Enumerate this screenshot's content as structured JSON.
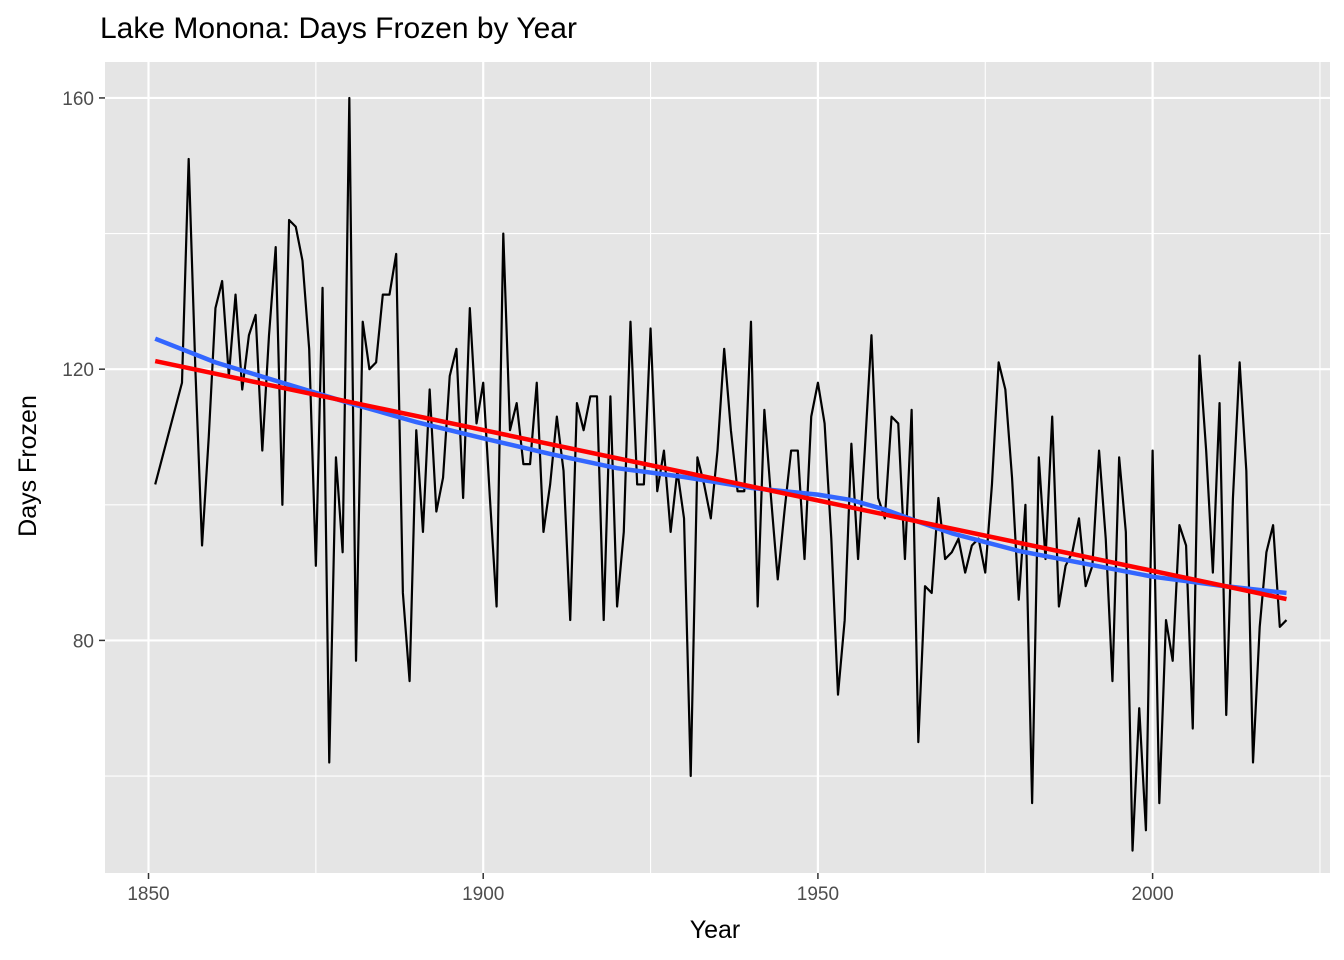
{
  "chart_data": {
    "type": "line",
    "title": "Lake Monona: Days Frozen by Year",
    "xlabel": "Year",
    "ylabel": "Days Frozen",
    "xlim": [
      1843.5,
      2026.5
    ],
    "ylim": [
      45.7,
      165.3
    ],
    "x_ticks": [
      1850,
      1900,
      1950,
      2000
    ],
    "x_tick_labels": [
      "1850",
      "1900",
      "1950",
      "2000"
    ],
    "x_minor_ticks": [
      1875,
      1925,
      1975,
      2025
    ],
    "y_ticks": [
      80,
      120,
      160
    ],
    "y_tick_labels": [
      "80",
      "120",
      "160"
    ],
    "y_minor_ticks": [
      60,
      100,
      140
    ],
    "grid": true,
    "legend": "none",
    "colors": {
      "panel": "#e5e5e5",
      "grid": "#ffffff",
      "observed": "#000000",
      "smooth": "#3366ff",
      "linear": "#ff0000"
    },
    "series": [
      {
        "role": "observed",
        "x": [
          1851,
          1855,
          1856,
          1857,
          1858,
          1859,
          1860,
          1861,
          1862,
          1863,
          1864,
          1865,
          1866,
          1867,
          1868,
          1869,
          1870,
          1871,
          1872,
          1873,
          1874,
          1875,
          1876,
          1877,
          1878,
          1879,
          1880,
          1881,
          1882,
          1883,
          1884,
          1885,
          1886,
          1887,
          1888,
          1889,
          1890,
          1891,
          1892,
          1893,
          1894,
          1895,
          1896,
          1897,
          1898,
          1899,
          1900,
          1901,
          1902,
          1903,
          1904,
          1905,
          1906,
          1907,
          1908,
          1909,
          1910,
          1911,
          1912,
          1913,
          1914,
          1915,
          1916,
          1917,
          1918,
          1919,
          1920,
          1921,
          1922,
          1923,
          1924,
          1925,
          1926,
          1927,
          1928,
          1929,
          1930,
          1931,
          1932,
          1933,
          1934,
          1935,
          1936,
          1937,
          1938,
          1939,
          1940,
          1941,
          1942,
          1943,
          1944,
          1945,
          1946,
          1947,
          1948,
          1949,
          1950,
          1951,
          1952,
          1953,
          1954,
          1955,
          1956,
          1957,
          1958,
          1959,
          1960,
          1961,
          1962,
          1963,
          1964,
          1965,
          1966,
          1967,
          1968,
          1969,
          1970,
          1971,
          1972,
          1973,
          1974,
          1975,
          1976,
          1977,
          1978,
          1979,
          1980,
          1981,
          1982,
          1983,
          1984,
          1985,
          1986,
          1987,
          1988,
          1989,
          1990,
          1991,
          1992,
          1993,
          1994,
          1995,
          1996,
          1997,
          1998,
          1999,
          2000,
          2001,
          2002,
          2003,
          2004,
          2005,
          2006,
          2007,
          2008,
          2009,
          2010,
          2011,
          2012,
          2013,
          2014,
          2015,
          2016,
          2017,
          2018,
          2019,
          2020
        ],
        "y": [
          103,
          118,
          151,
          120,
          94,
          110,
          129,
          133,
          119,
          131,
          117,
          125,
          128,
          108,
          125,
          138,
          100,
          142,
          141,
          136,
          123,
          91,
          132,
          62,
          107,
          93,
          160,
          77,
          127,
          120,
          121,
          131,
          131,
          137,
          87,
          74,
          111,
          96,
          117,
          99,
          104,
          119,
          123,
          101,
          129,
          112,
          118,
          101,
          85,
          140,
          111,
          115,
          106,
          106,
          118,
          96,
          103,
          113,
          105,
          83,
          115,
          111,
          116,
          116,
          83,
          116,
          85,
          96,
          127,
          103,
          103,
          126,
          102,
          108,
          96,
          105,
          98,
          60,
          107,
          103,
          98,
          108,
          123,
          111,
          102,
          102,
          127,
          85,
          114,
          101,
          89,
          99,
          108,
          108,
          92,
          113,
          118,
          112,
          95,
          72,
          83,
          109,
          92,
          108,
          125,
          101,
          98,
          113,
          112,
          92,
          114,
          65,
          88,
          87,
          101,
          92,
          93,
          95,
          90,
          94,
          95,
          90,
          103,
          121,
          117,
          104,
          86,
          100,
          56,
          107,
          92,
          113,
          85,
          91,
          93,
          98,
          88,
          91,
          108,
          95,
          74,
          107,
          96,
          49,
          70,
          52,
          108,
          56,
          83,
          77,
          97,
          94,
          67,
          122,
          108,
          90,
          115,
          69,
          101,
          121,
          105,
          62,
          82,
          93,
          97,
          82,
          83
        ]
      },
      {
        "role": "smooth",
        "x": [
          1851,
          1860,
          1870,
          1880,
          1890,
          1900,
          1910,
          1920,
          1930,
          1940,
          1950,
          1955,
          1960,
          1965,
          1970,
          1980,
          1990,
          2000,
          2010,
          2020
        ],
        "y": [
          124.5,
          121,
          118,
          115,
          112.2,
          109.8,
          107.5,
          105.4,
          104.1,
          102.5,
          101.5,
          100.7,
          99.3,
          97.5,
          95.8,
          93.2,
          91.3,
          89.4,
          88.1,
          87.0
        ]
      },
      {
        "role": "linear",
        "x": [
          1851,
          2020
        ],
        "y": [
          121.2,
          86.1
        ]
      }
    ]
  }
}
